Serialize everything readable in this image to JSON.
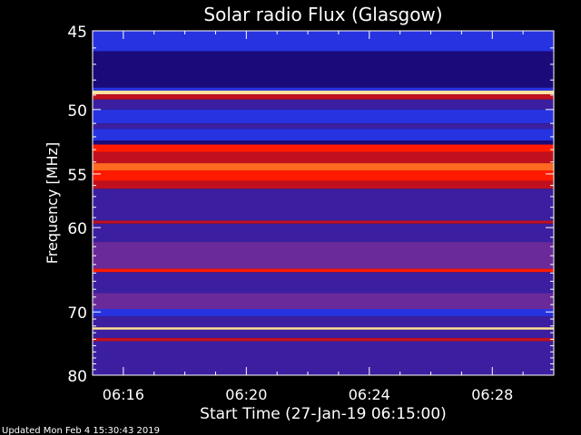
{
  "chart_data": {
    "type": "heatmap",
    "title": "Solar radio Flux (Glasgow)",
    "xlabel": "Start Time (27-Jan-19 06:15:00)",
    "ylabel": "Frequency [MHz]",
    "y_ticks": [
      45,
      50,
      55,
      60,
      70,
      80
    ],
    "y_range": [
      45,
      80
    ],
    "y_scale": "reciprocal",
    "x_ticks": [
      "06:16",
      "06:20",
      "06:24",
      "06:28"
    ],
    "x_tick_minutes": [
      16,
      20,
      24,
      28
    ],
    "x_range_minutes": [
      15.0,
      30.0
    ],
    "colormap": [
      "#1a0a7a",
      "#3b1fa0",
      "#2733e0",
      "#6a2a9a",
      "#c01020",
      "#ff1a00",
      "#ff6a20",
      "#ffe0a0"
    ],
    "bands": [
      {
        "from": 45.0,
        "to": 46.2,
        "level": 2
      },
      {
        "from": 46.2,
        "to": 48.5,
        "level": 0
      },
      {
        "from": 48.5,
        "to": 48.7,
        "level": 2
      },
      {
        "from": 48.7,
        "to": 48.95,
        "level": 7
      },
      {
        "from": 48.95,
        "to": 49.3,
        "level": 4
      },
      {
        "from": 49.3,
        "to": 50.0,
        "level": 1
      },
      {
        "from": 50.0,
        "to": 51.0,
        "level": 2
      },
      {
        "from": 51.0,
        "to": 51.4,
        "level": 1
      },
      {
        "from": 51.4,
        "to": 52.3,
        "level": 2
      },
      {
        "from": 52.3,
        "to": 52.6,
        "level": 0
      },
      {
        "from": 52.6,
        "to": 53.2,
        "level": 5
      },
      {
        "from": 53.2,
        "to": 54.1,
        "level": 4
      },
      {
        "from": 54.1,
        "to": 54.7,
        "level": 6
      },
      {
        "from": 54.7,
        "to": 55.6,
        "level": 5
      },
      {
        "from": 55.6,
        "to": 56.3,
        "level": 4
      },
      {
        "from": 56.3,
        "to": 59.3,
        "level": 1
      },
      {
        "from": 59.3,
        "to": 59.6,
        "level": 4
      },
      {
        "from": 59.6,
        "to": 61.5,
        "level": 1
      },
      {
        "from": 61.5,
        "to": 64.5,
        "level": 3
      },
      {
        "from": 64.5,
        "to": 64.9,
        "level": 5
      },
      {
        "from": 64.9,
        "to": 67.5,
        "level": 1
      },
      {
        "from": 67.5,
        "to": 69.6,
        "level": 3
      },
      {
        "from": 69.6,
        "to": 70.6,
        "level": 2
      },
      {
        "from": 70.6,
        "to": 72.2,
        "level": 1
      },
      {
        "from": 72.2,
        "to": 72.55,
        "level": 7
      },
      {
        "from": 72.55,
        "to": 73.8,
        "level": 1
      },
      {
        "from": 73.8,
        "to": 74.3,
        "level": 4
      },
      {
        "from": 74.3,
        "to": 80.0,
        "level": 1
      }
    ]
  },
  "footer": {
    "updated_text": "Updated Mon Feb  4 15:30:43 2019"
  }
}
